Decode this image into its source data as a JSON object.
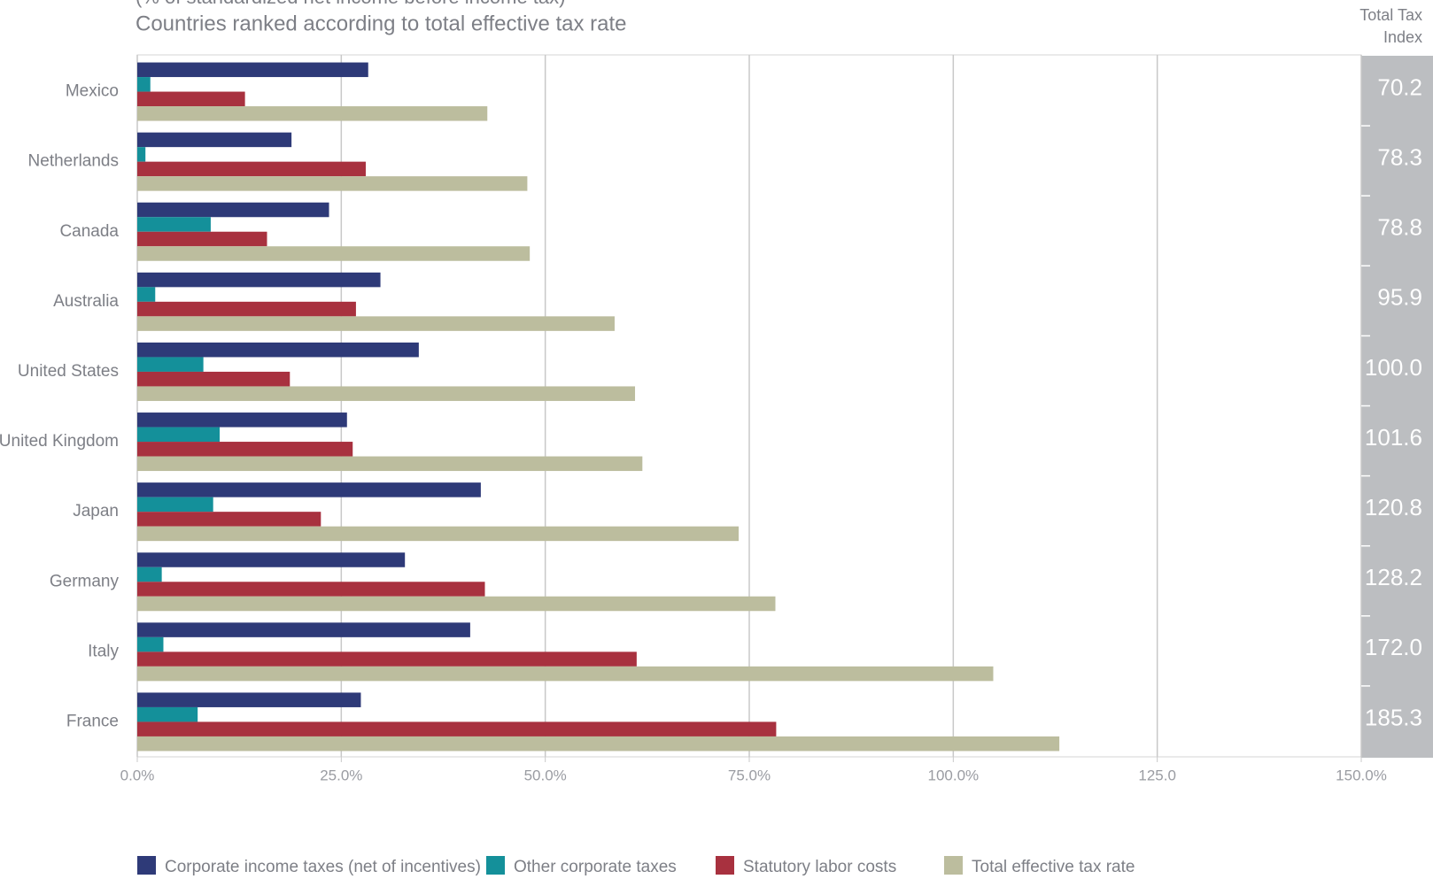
{
  "chart_data": {
    "type": "hbar",
    "subtitle": "(% of standardized net income before income tax)",
    "title": "Countries ranked according to total effective tax rate",
    "categories": [
      "Mexico",
      "Netherlands",
      "Canada",
      "Australia",
      "United States",
      "United Kingdom",
      "Japan",
      "Germany",
      "Italy",
      "France"
    ],
    "series": [
      {
        "name": "Corporate income taxes (net of incentives)",
        "color": "#2e3a78",
        "values": [
          28.3,
          18.9,
          23.5,
          29.8,
          34.5,
          25.7,
          42.1,
          32.8,
          40.8,
          27.4
        ]
      },
      {
        "name": "Other corporate taxes",
        "color": "#14909a",
        "values": [
          1.6,
          1.0,
          9.0,
          2.2,
          8.1,
          10.1,
          9.3,
          3.0,
          3.2,
          7.4
        ]
      },
      {
        "name": "Statutory labor costs",
        "color": "#a8313f",
        "values": [
          13.2,
          28.0,
          15.9,
          26.8,
          18.7,
          26.4,
          22.5,
          42.6,
          61.2,
          78.3
        ]
      },
      {
        "name": "Total effective tax rate",
        "color": "#bcbd9e",
        "values": [
          42.9,
          47.8,
          48.1,
          58.5,
          61.0,
          61.9,
          73.7,
          78.2,
          104.9,
          113.0
        ]
      }
    ],
    "xlim": [
      0,
      150
    ],
    "xticks": [
      {
        "value": 0,
        "label": "0.0%"
      },
      {
        "value": 25,
        "label": "25.0%"
      },
      {
        "value": 50,
        "label": "50.0%"
      },
      {
        "value": 75,
        "label": "75.0%"
      },
      {
        "value": 100,
        "label": "100.0%"
      },
      {
        "value": 125,
        "label": "125.0"
      },
      {
        "value": 150,
        "label": "150.0%"
      }
    ],
    "grid": true,
    "total_tax_index": {
      "title": [
        "Total Tax",
        "Index"
      ],
      "labels": [
        "70.2",
        "78.3",
        "78.8",
        "95.9",
        "100.0",
        "101.6",
        "120.8",
        "128.2",
        "172.0",
        "185.3"
      ]
    }
  }
}
